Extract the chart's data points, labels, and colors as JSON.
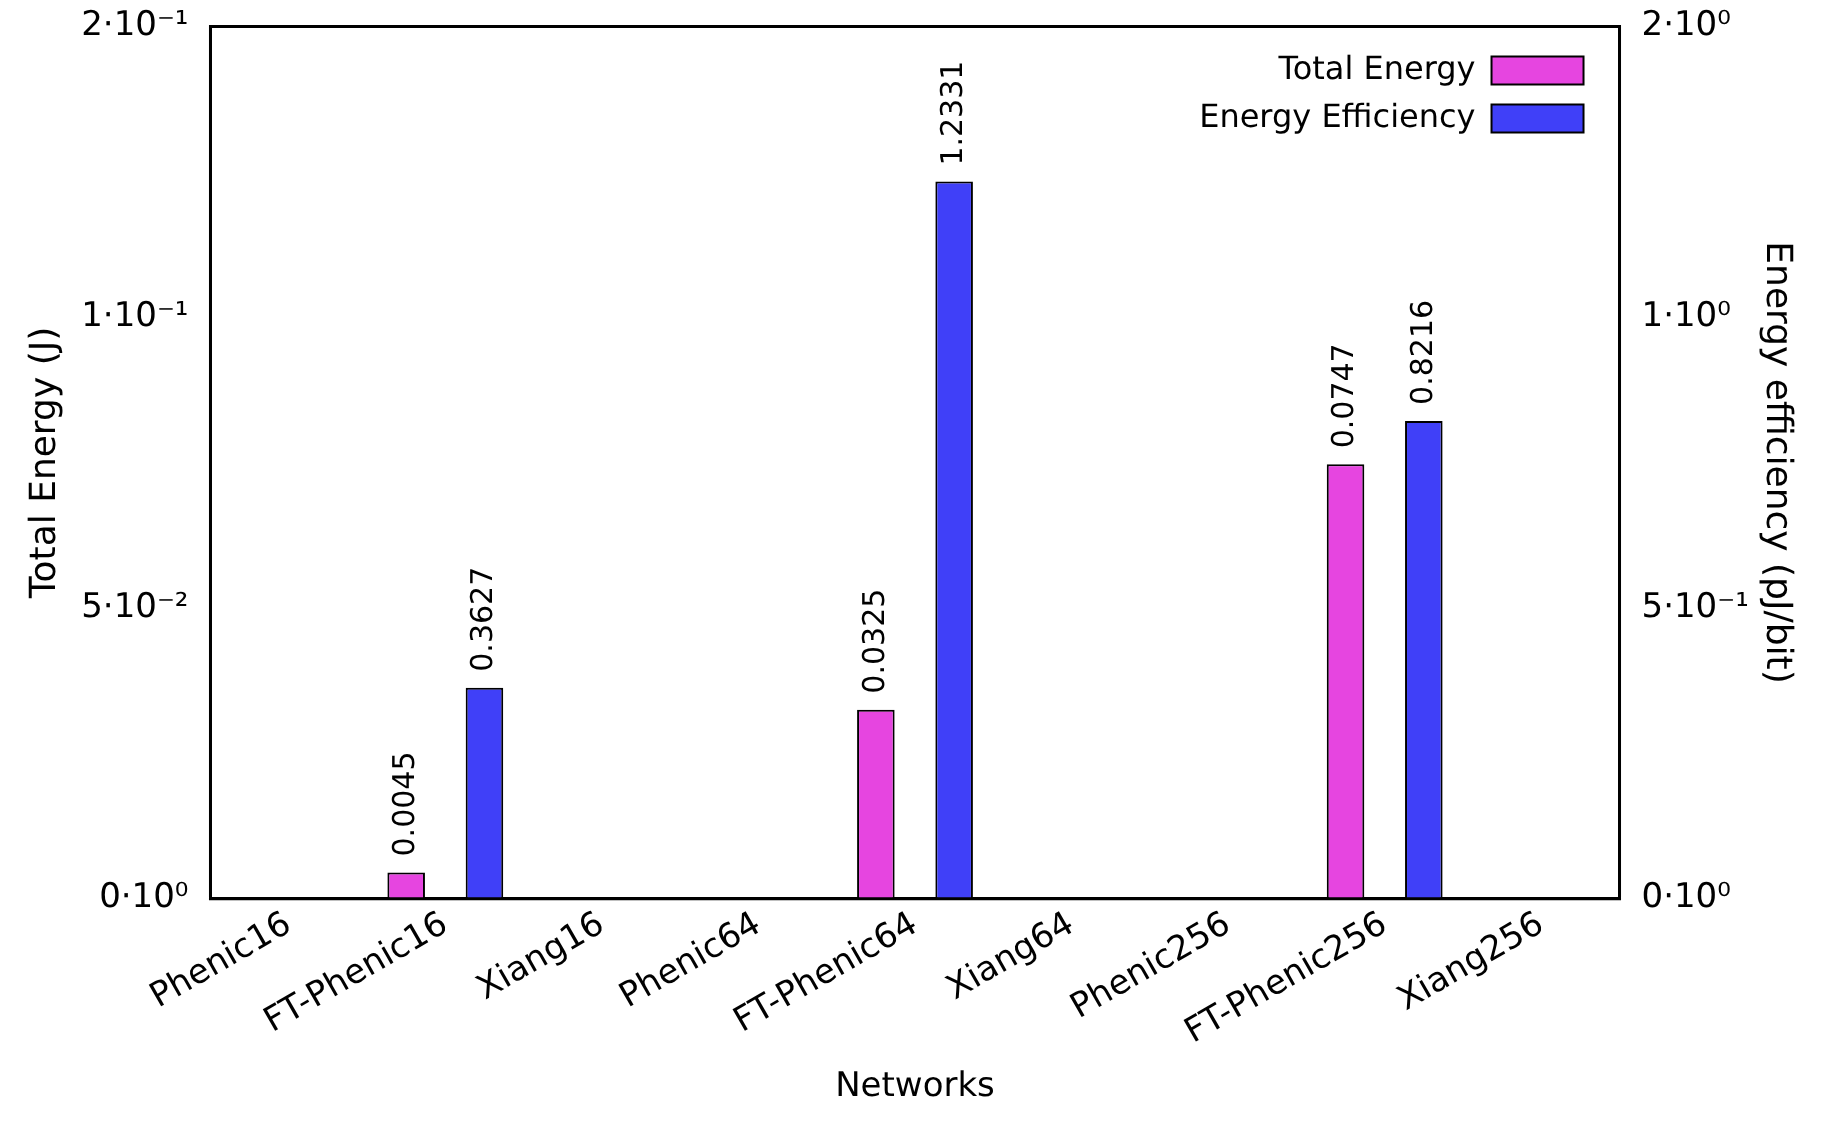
{
  "chart_data": {
    "type": "bar",
    "xlabel": "Networks",
    "ylabel": "Total Energy (J)",
    "y2label": "Energy efficiency (pJ/bit)",
    "categories": [
      "Phenic16",
      "FT-Phenic16",
      "Xiang16",
      "Phenic64",
      "FT-Phenic64",
      "Xiang64",
      "Phenic256",
      "FT-Phenic256",
      "Xiang256"
    ],
    "series": [
      {
        "name": "Total Energy",
        "color": "#e645e0",
        "values": [
          null,
          0.0045,
          null,
          null,
          0.0325,
          null,
          null,
          0.0747,
          null
        ]
      },
      {
        "name": "Energy Efficiency",
        "color": "#4040f8",
        "axis": "y2",
        "values": [
          null,
          0.3627,
          null,
          null,
          1.2331,
          null,
          null,
          0.8216,
          null
        ]
      }
    ],
    "ylim": [
      0,
      0.15
    ],
    "yticks": [
      {
        "value": 0,
        "label": "0·10⁰"
      },
      {
        "value": 0.05,
        "label": "5·10⁻²"
      },
      {
        "value": 0.1,
        "label": "1·10⁻¹"
      },
      {
        "value": 0.15,
        "label": "2·10⁻¹"
      }
    ],
    "y2lim": [
      0,
      1.5
    ],
    "y2ticks": [
      {
        "value": 0,
        "label": "0·10⁰"
      },
      {
        "value": 0.5,
        "label": "5·10⁻¹"
      },
      {
        "value": 1,
        "label": "1·10⁰"
      },
      {
        "value": 1.5,
        "label": "2·10⁰"
      }
    ],
    "data_labels": true,
    "legend": "top right",
    "grid": false
  }
}
